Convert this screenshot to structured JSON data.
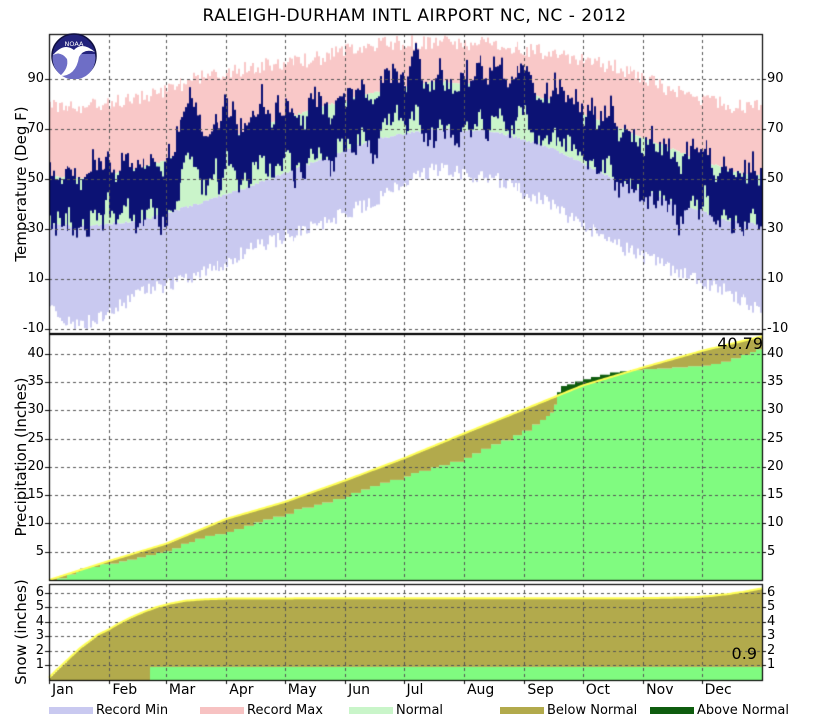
{
  "title": "RALEIGH-DURHAM INTL AIRPORT NC, NC - 2012",
  "logo": {
    "text": "NOAA"
  },
  "months": [
    "Jan",
    "Feb",
    "Mar",
    "Apr",
    "May",
    "Jun",
    "Jul",
    "Aug",
    "Sep",
    "Oct",
    "Nov",
    "Dec"
  ],
  "panels": {
    "temperature": {
      "ylabel": "Temperature (Deg F)",
      "ticks": [
        90,
        70,
        50,
        30,
        10,
        -10
      ]
    },
    "precipitation": {
      "ylabel": "Precipitation (Inches)",
      "ticks": [
        40,
        35,
        30,
        25,
        20,
        15,
        10,
        5
      ],
      "annotation": "40.79"
    },
    "snow": {
      "ylabel": "Snow (inches)",
      "ticks": [
        6,
        5,
        4,
        3,
        2,
        1
      ],
      "annotation": "0.9"
    }
  },
  "legend": [
    {
      "label": "Record Min",
      "color": "#c9c9f0"
    },
    {
      "label": "Record Max",
      "color": "#f7c2c2"
    },
    {
      "label": "Normal",
      "color": "#c9f5c9"
    },
    {
      "label": "Below Normal",
      "color": "#b2aa4c"
    },
    {
      "label": "Above Normal",
      "color": "#0e5c0e"
    }
  ],
  "colors": {
    "actual_bar": "#0c1274",
    "record_min": "#c9c9f0",
    "record_max": "#f9c8c8",
    "normal_band": "#caf4ca",
    "precip_actual": "#80fb80",
    "below_normal": "#b2aa4c",
    "above_normal": "#0e5c0e",
    "normal_line": "#ffff55",
    "grid": "#555555",
    "axis": "#000000"
  },
  "chart_data": [
    {
      "type": "bar",
      "panel": "temperature",
      "description": "Daily 2012 observed high-low temperature bars over record and normal climate bands",
      "ylabel": "Temperature (Deg F)",
      "ylim": [
        -11.5,
        108
      ],
      "yticks": [
        90,
        70,
        50,
        30,
        10,
        -10
      ],
      "grid": true,
      "monthly_record_high": [
        79,
        82,
        90,
        95,
        98,
        104,
        105,
        104,
        100,
        95,
        85,
        79
      ],
      "monthly_record_low": [
        -9,
        4,
        11,
        23,
        31,
        42,
        54,
        50,
        39,
        24,
        14,
        4
      ],
      "monthly_normal_high": [
        50,
        54,
        62,
        71,
        78,
        85,
        89,
        88,
        81,
        71,
        62,
        53
      ],
      "monthly_normal_low": [
        31,
        33,
        40,
        48,
        57,
        66,
        70,
        69,
        62,
        50,
        41,
        33
      ],
      "monthly_actual_anomaly": [
        3,
        3,
        9,
        3,
        2,
        2,
        3,
        2,
        1,
        1,
        1,
        4
      ],
      "heatwave_highs": {
        "start_day": 186,
        "values": [
          99,
          103,
          105,
          102,
          98
        ]
      },
      "noise_seed": 20121
    },
    {
      "type": "area",
      "panel": "precipitation",
      "description": "2012 accumulated precipitation (green) vs normal accumulation (yellow line); olive = below normal, dark green = above normal",
      "ylabel": "Precipitation (Inches)",
      "ylim": [
        0,
        43.5
      ],
      "yticks": [
        40,
        35,
        30,
        25,
        20,
        15,
        10,
        5
      ],
      "grid": true,
      "total_actual": 40.79,
      "actual_cumulative": [
        [
          0,
          0
        ],
        [
          4,
          0.3
        ],
        [
          9,
          1.0
        ],
        [
          14,
          1.4
        ],
        [
          16,
          2.0
        ],
        [
          21,
          2.3
        ],
        [
          26,
          2.8
        ],
        [
          31,
          2.9
        ],
        [
          36,
          3.3
        ],
        [
          40,
          3.6
        ],
        [
          45,
          4.0
        ],
        [
          50,
          4.4
        ],
        [
          55,
          4.8
        ],
        [
          59,
          5.1
        ],
        [
          63,
          5.6
        ],
        [
          68,
          6.4
        ],
        [
          72,
          6.7
        ],
        [
          75,
          7.3
        ],
        [
          80,
          7.8
        ],
        [
          85,
          8.1
        ],
        [
          91,
          8.5
        ],
        [
          95,
          9.0
        ],
        [
          100,
          9.6
        ],
        [
          105,
          10.2
        ],
        [
          110,
          10.7
        ],
        [
          115,
          11.2
        ],
        [
          121,
          11.7
        ],
        [
          126,
          12.5
        ],
        [
          130,
          12.8
        ],
        [
          136,
          13.3
        ],
        [
          140,
          13.7
        ],
        [
          146,
          14.3
        ],
        [
          152,
          14.7
        ],
        [
          155,
          15.4
        ],
        [
          160,
          16.0
        ],
        [
          165,
          16.6
        ],
        [
          170,
          17.2
        ],
        [
          175,
          17.7
        ],
        [
          182,
          18.3
        ],
        [
          186,
          18.9
        ],
        [
          190,
          19.3
        ],
        [
          196,
          19.9
        ],
        [
          200,
          20.3
        ],
        [
          206,
          20.9
        ],
        [
          213,
          21.6
        ],
        [
          217,
          22.4
        ],
        [
          222,
          23.2
        ],
        [
          227,
          24.0
        ],
        [
          232,
          24.7
        ],
        [
          238,
          25.6
        ],
        [
          243,
          26.4
        ],
        [
          248,
          27.5
        ],
        [
          252,
          28.3
        ],
        [
          255,
          29.0
        ],
        [
          257,
          29.6
        ],
        [
          259,
          31.0
        ],
        [
          261,
          33.2
        ],
        [
          263,
          34.3
        ],
        [
          266,
          34.6
        ],
        [
          270,
          35.1
        ],
        [
          274,
          35.5
        ],
        [
          278,
          35.9
        ],
        [
          283,
          36.3
        ],
        [
          288,
          36.7
        ],
        [
          293,
          36.9
        ],
        [
          298,
          37.1
        ],
        [
          305,
          37.3
        ],
        [
          312,
          37.4
        ],
        [
          320,
          37.6
        ],
        [
          328,
          37.8
        ],
        [
          335,
          37.9
        ],
        [
          340,
          38.2
        ],
        [
          345,
          38.6
        ],
        [
          350,
          39.2
        ],
        [
          355,
          39.8
        ],
        [
          360,
          40.3
        ],
        [
          363,
          40.79
        ],
        [
          366,
          40.79
        ]
      ],
      "normal_cumulative": [
        [
          0,
          0
        ],
        [
          31,
          3.4
        ],
        [
          60,
          6.4
        ],
        [
          91,
          10.8
        ],
        [
          121,
          13.8
        ],
        [
          152,
          17.6
        ],
        [
          182,
          21.5
        ],
        [
          213,
          25.9
        ],
        [
          244,
          30.2
        ],
        [
          274,
          34.4
        ],
        [
          305,
          37.6
        ],
        [
          335,
          40.5
        ],
        [
          366,
          43.1
        ]
      ]
    },
    {
      "type": "area",
      "panel": "snow",
      "description": "2012 accumulated snowfall (green, 0.9 in) vs normal accumulation (yellow line over olive below-normal area)",
      "ylabel": "Snow (inches)",
      "ylim": [
        0,
        6.6
      ],
      "yticks": [
        6,
        5,
        4,
        3,
        2,
        1
      ],
      "grid": true,
      "total_actual": 0.9,
      "actual_cumulative": [
        [
          0,
          0
        ],
        [
          51,
          0
        ],
        [
          52,
          0.9
        ],
        [
          366,
          0.9
        ]
      ],
      "normal_cumulative": [
        [
          0,
          0.15
        ],
        [
          4,
          0.7
        ],
        [
          8,
          1.2
        ],
        [
          12,
          1.7
        ],
        [
          16,
          2.2
        ],
        [
          20,
          2.6
        ],
        [
          25,
          3.1
        ],
        [
          31,
          3.5
        ],
        [
          36,
          3.9
        ],
        [
          42,
          4.3
        ],
        [
          48,
          4.65
        ],
        [
          55,
          5.0
        ],
        [
          62,
          5.25
        ],
        [
          70,
          5.45
        ],
        [
          80,
          5.55
        ],
        [
          92,
          5.6
        ],
        [
          150,
          5.62
        ],
        [
          300,
          5.62
        ],
        [
          320,
          5.66
        ],
        [
          332,
          5.7
        ],
        [
          340,
          5.78
        ],
        [
          348,
          5.9
        ],
        [
          356,
          6.05
        ],
        [
          362,
          6.2
        ],
        [
          366,
          6.3
        ]
      ]
    }
  ]
}
